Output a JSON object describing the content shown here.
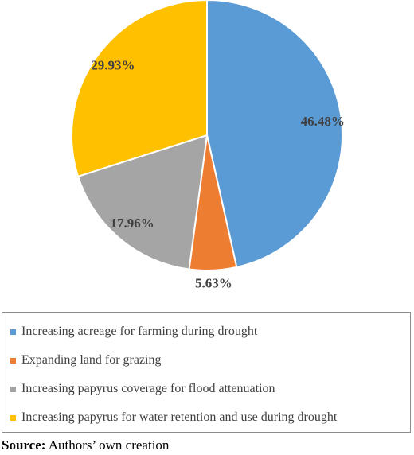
{
  "chart_data": {
    "type": "pie",
    "categories": [
      "Increasing acreage for farming during drought",
      "Expanding land for grazing",
      "Increasing papyrus coverage for flood attenuation",
      "Increasing papyrus for water retention and use during drought"
    ],
    "values": [
      46.48,
      5.63,
      17.96,
      29.93
    ],
    "value_labels": [
      "46.48%",
      "5.63%",
      "17.96%",
      "29.93%"
    ],
    "colors": [
      "#5b9bd5",
      "#ed7d31",
      "#a5a5a5",
      "#ffc000"
    ]
  },
  "source": {
    "label": "Source:",
    "text": "Authors’ own creation"
  }
}
